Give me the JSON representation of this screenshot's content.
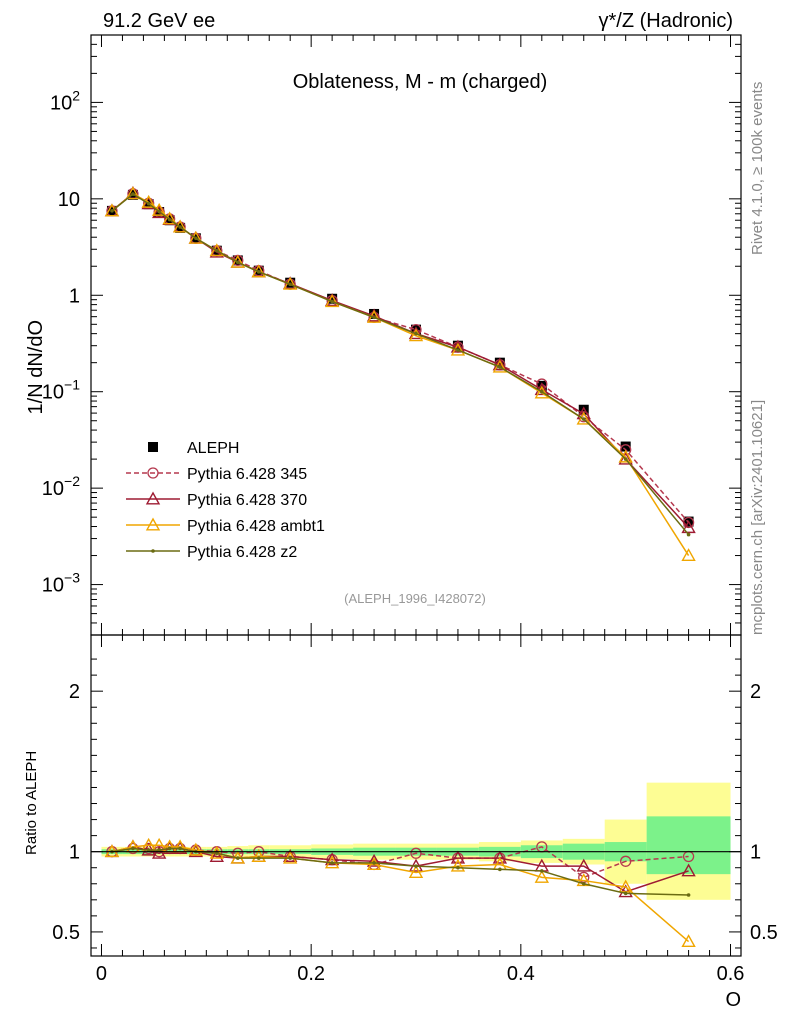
{
  "header": {
    "left": "91.2 GeV ee",
    "right": "γ*/Z (Hadronic)",
    "side_top": "Rivet 4.1.0, ≥ 100k events",
    "side_bottom": "mcplots.cern.ch [arXiv:2401.10621]"
  },
  "chart_data": [
    {
      "type": "line",
      "title": "Oblateness, M - m (charged)",
      "ylabel": "1/N  dN/dO",
      "xlabel": "O",
      "yscale": "log",
      "xlim": [
        -0.01,
        0.61
      ],
      "ylim": [
        0.0003,
        500
      ],
      "xticks": [
        0,
        0.2,
        0.4,
        0.6
      ],
      "xtick_labels": [
        "0",
        "0.2",
        "0.4",
        "0.6"
      ],
      "yticks": [
        {
          "value": 0.001,
          "base": "10",
          "exp": "−3"
        },
        {
          "value": 0.01,
          "base": "10",
          "exp": "−2"
        },
        {
          "value": 0.1,
          "base": "10",
          "exp": "−1"
        },
        {
          "value": 1,
          "base": "1",
          "exp": ""
        },
        {
          "value": 10,
          "base": "10",
          "exp": ""
        },
        {
          "value": 100,
          "base": "10",
          "exp": "2"
        }
      ],
      "x": [
        0.01,
        0.03,
        0.045,
        0.055,
        0.065,
        0.075,
        0.09,
        0.11,
        0.13,
        0.15,
        0.18,
        0.22,
        0.26,
        0.3,
        0.34,
        0.38,
        0.42,
        0.46,
        0.5,
        0.56
      ],
      "reference": "(ALEPH_1996_I428072)",
      "series": [
        {
          "name": "ALEPH",
          "color": "#000000",
          "marker": "square",
          "values": [
            7.5,
            11.0,
            8.8,
            7.3,
            6.0,
            5.0,
            3.9,
            2.9,
            2.3,
            1.8,
            1.35,
            0.92,
            0.64,
            0.44,
            0.3,
            0.2,
            0.115,
            0.065,
            0.027,
            0.0045
          ]
        },
        {
          "name": "Pythia 6.428 345",
          "color": "#b5394f",
          "marker": "circle",
          "dash": true,
          "values": [
            7.5,
            11.3,
            9.0,
            7.3,
            6.2,
            5.1,
            3.9,
            2.9,
            2.3,
            1.8,
            1.3,
            0.88,
            0.59,
            0.44,
            0.29,
            0.19,
            0.12,
            0.055,
            0.025,
            0.0044
          ]
        },
        {
          "name": "Pythia 6.428 370",
          "color": "#9e1b32",
          "marker": "triangle",
          "values": [
            7.5,
            11.4,
            8.9,
            7.2,
            6.1,
            5.1,
            3.9,
            2.8,
            2.2,
            1.75,
            1.32,
            0.88,
            0.61,
            0.4,
            0.29,
            0.19,
            0.105,
            0.059,
            0.02,
            0.0039
          ]
        },
        {
          "name": "Pythia 6.428 ambt1",
          "color": "#f0a600",
          "marker": "triangle",
          "values": [
            7.5,
            11.3,
            9.2,
            7.6,
            6.2,
            5.1,
            3.9,
            2.9,
            2.2,
            1.75,
            1.3,
            0.86,
            0.59,
            0.38,
            0.27,
            0.18,
            0.097,
            0.052,
            0.021,
            0.002
          ]
        },
        {
          "name": "Pythia 6.428 z2",
          "color": "#6b6b12",
          "marker": "dot",
          "values": [
            7.5,
            11.2,
            8.9,
            7.4,
            6.1,
            5.1,
            3.9,
            2.9,
            2.2,
            1.75,
            1.3,
            0.86,
            0.59,
            0.4,
            0.27,
            0.18,
            0.1,
            0.052,
            0.02,
            0.0033
          ]
        }
      ]
    },
    {
      "type": "line",
      "ylabel": "Ratio to ALEPH",
      "xlabel": "O",
      "xlim": [
        -0.01,
        0.61
      ],
      "ylim": [
        0.35,
        2.35
      ],
      "yticks": [
        0.5,
        1,
        2
      ],
      "ytick_labels": [
        "0.5",
        "1",
        "2"
      ],
      "x": [
        0.01,
        0.03,
        0.045,
        0.055,
        0.065,
        0.075,
        0.09,
        0.11,
        0.13,
        0.15,
        0.18,
        0.22,
        0.26,
        0.3,
        0.34,
        0.38,
        0.42,
        0.46,
        0.5,
        0.56
      ],
      "bands": {
        "x_edges": [
          0.0,
          0.02,
          0.04,
          0.05,
          0.06,
          0.07,
          0.08,
          0.1,
          0.12,
          0.14,
          0.16,
          0.2,
          0.24,
          0.28,
          0.32,
          0.36,
          0.4,
          0.44,
          0.48,
          0.52,
          0.6
        ],
        "stat_low": [
          0.985,
          0.985,
          0.985,
          0.985,
          0.985,
          0.985,
          0.985,
          0.985,
          0.985,
          0.985,
          0.985,
          0.98,
          0.975,
          0.975,
          0.975,
          0.97,
          0.96,
          0.95,
          0.94,
          0.86
        ],
        "stat_high": [
          1.015,
          1.015,
          1.015,
          1.015,
          1.015,
          1.015,
          1.015,
          1.015,
          1.015,
          1.015,
          1.015,
          1.02,
          1.025,
          1.025,
          1.025,
          1.03,
          1.04,
          1.05,
          1.06,
          1.22
        ],
        "total_low": [
          0.97,
          0.97,
          0.97,
          0.97,
          0.97,
          0.97,
          0.97,
          0.97,
          0.965,
          0.96,
          0.96,
          0.955,
          0.95,
          0.95,
          0.95,
          0.94,
          0.93,
          0.92,
          0.8,
          0.7
        ],
        "total_high": [
          1.03,
          1.03,
          1.03,
          1.03,
          1.03,
          1.03,
          1.03,
          1.03,
          1.035,
          1.04,
          1.04,
          1.045,
          1.05,
          1.05,
          1.05,
          1.06,
          1.07,
          1.08,
          1.2,
          1.43
        ],
        "stat_color": "#7cf28a",
        "total_color": "#fdfd94"
      },
      "series": [
        {
          "name": "Pythia 6.428 345",
          "color": "#b5394f",
          "marker": "circle",
          "dash": true,
          "values": [
            1.0,
            1.02,
            1.02,
            1.0,
            1.02,
            1.02,
            1.01,
            1.0,
            0.99,
            1.0,
            0.97,
            0.95,
            0.92,
            0.99,
            0.96,
            0.96,
            1.03,
            0.84,
            0.94,
            0.97
          ]
        },
        {
          "name": "Pythia 6.428 370",
          "color": "#9e1b32",
          "marker": "triangle",
          "values": [
            1.0,
            1.03,
            1.01,
            0.99,
            1.02,
            1.02,
            1.0,
            0.97,
            0.96,
            0.97,
            0.97,
            0.95,
            0.94,
            0.91,
            0.96,
            0.96,
            0.91,
            0.91,
            0.75,
            0.88
          ]
        },
        {
          "name": "Pythia 6.428 ambt1",
          "color": "#f0a600",
          "marker": "triangle",
          "values": [
            1.0,
            1.03,
            1.04,
            1.04,
            1.03,
            1.03,
            1.01,
            0.99,
            0.96,
            0.97,
            0.96,
            0.93,
            0.92,
            0.87,
            0.91,
            0.92,
            0.84,
            0.82,
            0.78,
            0.44
          ]
        },
        {
          "name": "Pythia 6.428 z2",
          "color": "#6b6b12",
          "marker": "dot",
          "values": [
            1.0,
            1.02,
            1.01,
            1.01,
            1.02,
            1.02,
            1.0,
            0.99,
            0.96,
            0.96,
            0.96,
            0.93,
            0.93,
            0.91,
            0.9,
            0.89,
            0.88,
            0.8,
            0.74,
            0.73
          ]
        }
      ]
    }
  ]
}
